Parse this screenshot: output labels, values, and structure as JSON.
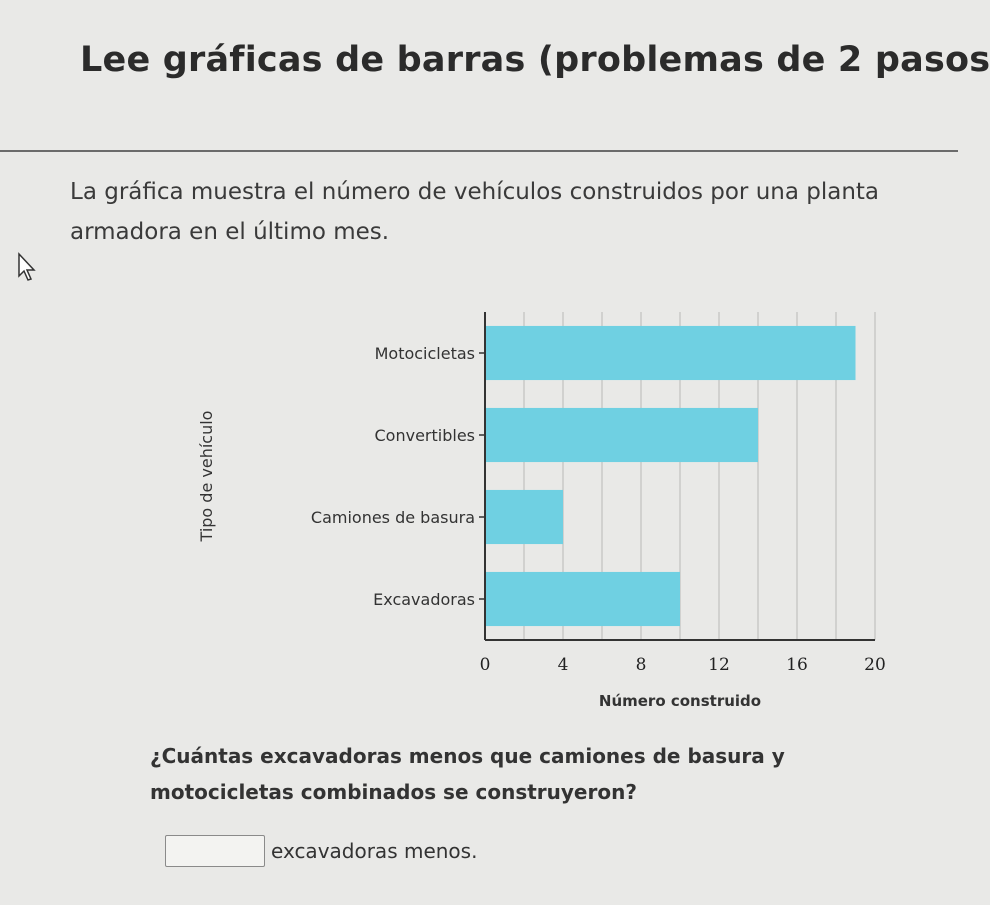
{
  "page": {
    "title": "Lee gráficas de barras (problemas de 2 pasos",
    "intro": "La gráfica muestra el número de vehículos construidos por una planta armadora en el último mes.",
    "question": "¿Cuántas excavadoras menos que camiones de basura y motocicletas combinados se construyeron?",
    "answer_suffix": "excavadoras menos.",
    "answer_value": ""
  },
  "chart_data": {
    "type": "bar",
    "orientation": "horizontal",
    "categories": [
      "Motocicletas",
      "Convertibles",
      "Camiones de basura",
      "Excavadoras"
    ],
    "values": [
      19,
      14,
      4,
      10
    ],
    "xlabel": "Número construido",
    "ylabel": "Tipo de vehículo",
    "xlim": [
      0,
      20
    ],
    "xticks": [
      "0",
      "4",
      "8",
      "12",
      "16",
      "20"
    ],
    "grid": true,
    "bar_color": "#6fd0e2"
  }
}
